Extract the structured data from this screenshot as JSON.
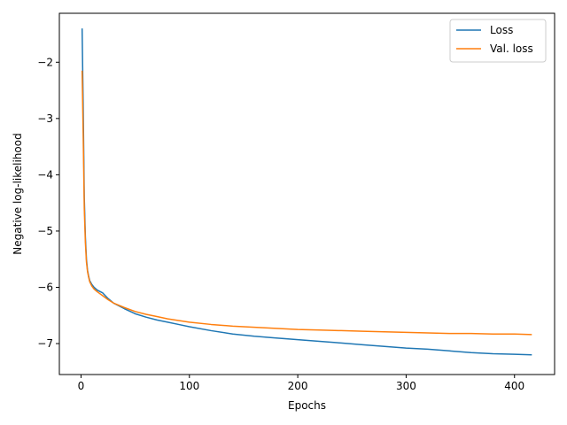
{
  "chart_data": {
    "type": "line",
    "title": "",
    "xlabel": "Epochs",
    "ylabel": "Negative log-likelihood",
    "xlim": [
      -20,
      437
    ],
    "ylim": [
      -7.55,
      -1.13
    ],
    "xticks": [
      0,
      100,
      200,
      300,
      400
    ],
    "yticks": [
      -2,
      -3,
      -4,
      -5,
      -6,
      -7
    ],
    "grid": false,
    "legend_position": "top-right",
    "series": [
      {
        "name": "Loss",
        "color": "#1f77b4",
        "x": [
          1,
          2,
          3,
          4,
          5,
          6,
          7,
          8,
          10,
          12,
          15,
          20,
          25,
          30,
          40,
          50,
          60,
          70,
          80,
          90,
          100,
          120,
          140,
          160,
          180,
          200,
          220,
          240,
          260,
          280,
          300,
          320,
          340,
          360,
          380,
          400,
          416
        ],
        "y": [
          -1.4,
          -2.8,
          -4.4,
          -5.1,
          -5.5,
          -5.7,
          -5.8,
          -5.88,
          -5.95,
          -6.0,
          -6.05,
          -6.1,
          -6.2,
          -6.28,
          -6.38,
          -6.47,
          -6.53,
          -6.58,
          -6.62,
          -6.66,
          -6.7,
          -6.77,
          -6.83,
          -6.87,
          -6.9,
          -6.93,
          -6.96,
          -6.99,
          -7.02,
          -7.05,
          -7.08,
          -7.1,
          -7.13,
          -7.16,
          -7.18,
          -7.19,
          -7.2
        ]
      },
      {
        "name": "Val. loss",
        "color": "#ff7f0e",
        "x": [
          1,
          2,
          3,
          4,
          5,
          6,
          7,
          8,
          10,
          12,
          15,
          20,
          25,
          30,
          40,
          50,
          60,
          70,
          80,
          90,
          100,
          120,
          140,
          160,
          180,
          200,
          220,
          240,
          260,
          280,
          300,
          320,
          340,
          360,
          380,
          400,
          416
        ],
        "y": [
          -2.15,
          -3.3,
          -4.6,
          -5.2,
          -5.55,
          -5.72,
          -5.82,
          -5.9,
          -5.98,
          -6.03,
          -6.08,
          -6.15,
          -6.22,
          -6.28,
          -6.36,
          -6.43,
          -6.48,
          -6.52,
          -6.56,
          -6.59,
          -6.62,
          -6.66,
          -6.69,
          -6.71,
          -6.73,
          -6.75,
          -6.76,
          -6.77,
          -6.78,
          -6.79,
          -6.8,
          -6.81,
          -6.82,
          -6.82,
          -6.83,
          -6.83,
          -6.84
        ]
      }
    ]
  }
}
